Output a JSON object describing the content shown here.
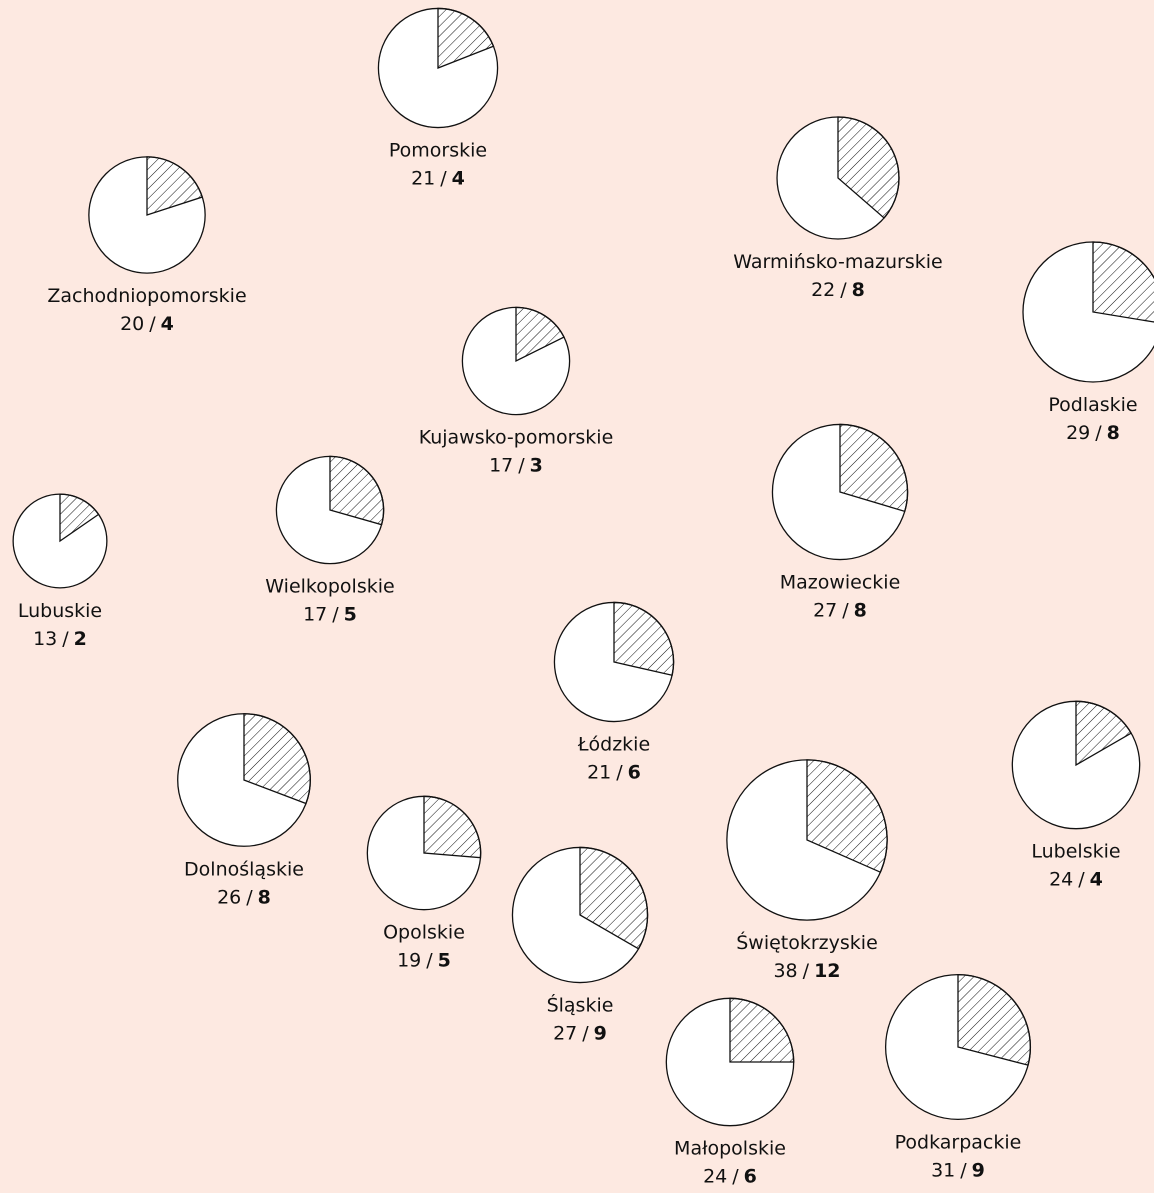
{
  "separator": "/",
  "regions": [
    {
      "name": "Pomorskie",
      "total": 21,
      "part": 4
    },
    {
      "name": "Zachodniopomorskie",
      "total": 20,
      "part": 4
    },
    {
      "name": "Warmińsko-mazurskie",
      "total": 22,
      "part": 8
    },
    {
      "name": "Podlaskie",
      "total": 29,
      "part": 8
    },
    {
      "name": "Kujawsko-pomorskie",
      "total": 17,
      "part": 3
    },
    {
      "name": "Wielkopolskie",
      "total": 17,
      "part": 5
    },
    {
      "name": "Lubuskie",
      "total": 13,
      "part": 2
    },
    {
      "name": "Mazowieckie",
      "total": 27,
      "part": 8
    },
    {
      "name": "Łódzkie",
      "total": 21,
      "part": 6
    },
    {
      "name": "Lubelskie",
      "total": 24,
      "part": 4
    },
    {
      "name": "Dolnośląskie",
      "total": 26,
      "part": 8
    },
    {
      "name": "Opolskie",
      "total": 19,
      "part": 5
    },
    {
      "name": "Śląskie",
      "total": 27,
      "part": 9
    },
    {
      "name": "Świętokrzyskie",
      "total": 38,
      "part": 12
    },
    {
      "name": "Małopolskie",
      "total": 24,
      "part": 6
    },
    {
      "name": "Podkarpackie",
      "total": 31,
      "part": 9
    }
  ]
}
